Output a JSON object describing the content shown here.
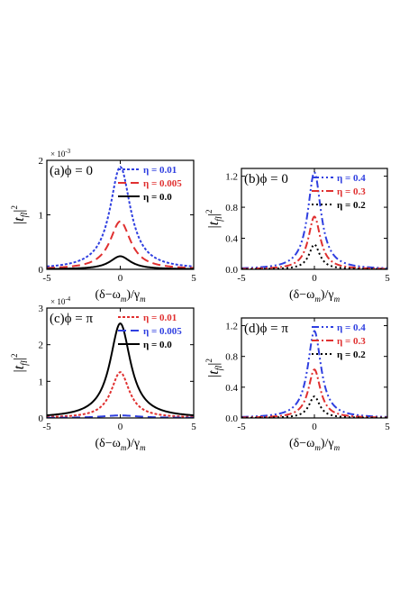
{
  "chart_data": [
    {
      "type": "line",
      "panel_label": "(a)ϕ = 0",
      "ylabel": "|t_{fl}|^2",
      "xlabel": "(δ−ω_m)/γ_m",
      "xlim": [
        -5,
        5
      ],
      "ylim": [
        0,
        2
      ],
      "yticks": [
        "0",
        "1",
        "2"
      ],
      "xticks": [
        "-5",
        "0",
        "5"
      ],
      "scale_note": "× 10^-3",
      "legend_position": "top-right",
      "series": [
        {
          "name": "η = 0.01",
          "color": "#2f3fe0",
          "dash": "3,2",
          "peak": 1.88,
          "width": 0.85
        },
        {
          "name": "η = 0.005",
          "color": "#e03030",
          "dash": "9,5",
          "peak": 0.88,
          "width": 0.85
        },
        {
          "name": "η = 0.0",
          "color": "#000000",
          "dash": "",
          "peak": 0.24,
          "width": 0.85
        }
      ]
    },
    {
      "type": "line",
      "panel_label": "(b)ϕ = 0",
      "ylabel": "|t_{fl}|^2",
      "xlabel": "(δ−ω_m)/γ_m",
      "xlim": [
        -5,
        5
      ],
      "ylim": [
        0,
        1.3
      ],
      "yticks": [
        "0.0",
        "0.4",
        "0.8",
        "1.2"
      ],
      "xticks": [
        "-5",
        "0",
        "5"
      ],
      "legend_position": "top-right",
      "series": [
        {
          "name": "η = 0.4",
          "color": "#2f3fe0",
          "dash": "8,3,2,3,2,3",
          "peak": 1.25,
          "width": 0.55
        },
        {
          "name": "η = 0.3",
          "color": "#e03030",
          "dash": "8,3,2,3",
          "peak": 0.68,
          "width": 0.5
        },
        {
          "name": "η = 0.2",
          "color": "#000000",
          "dash": "2,3",
          "peak": 0.32,
          "width": 0.45
        }
      ]
    },
    {
      "type": "line",
      "panel_label": "(c)ϕ = π",
      "ylabel": "|t_{fl}|^2",
      "xlabel": "(δ−ω_m)/γ_m",
      "xlim": [
        -5,
        5
      ],
      "ylim": [
        0,
        3
      ],
      "yticks": [
        "0",
        "1",
        "2",
        "3"
      ],
      "xticks": [
        "-5",
        "0",
        "5"
      ],
      "scale_note": "× 10^-4",
      "legend_position": "top-right",
      "series": [
        {
          "name": "η = 0.01",
          "color": "#e03030",
          "dash": "3,2",
          "peak": 1.25,
          "width": 0.75
        },
        {
          "name": "η = 0.005",
          "color": "#2f3fe0",
          "dash": "9,5",
          "peak": 0.07,
          "width": 1.5
        },
        {
          "name": "η = 0.0",
          "color": "#000000",
          "dash": "",
          "peak": 2.58,
          "width": 0.85
        }
      ]
    },
    {
      "type": "line",
      "panel_label": "(d)ϕ = π",
      "ylabel": "|t_{fl}|^2",
      "xlabel": "(δ−ω_m)/γ_m",
      "xlim": [
        -5,
        5
      ],
      "ylim": [
        0,
        1.3
      ],
      "yticks": [
        "0.0",
        "0.4",
        "0.8",
        "1.2"
      ],
      "xticks": [
        "-5",
        "0",
        "5"
      ],
      "legend_position": "top-right",
      "series": [
        {
          "name": "η = 0.4",
          "color": "#2f3fe0",
          "dash": "8,3,2,3,2,3",
          "peak": 1.13,
          "width": 0.55
        },
        {
          "name": "η = 0.3",
          "color": "#e03030",
          "dash": "8,3,2,3",
          "peak": 0.63,
          "width": 0.5
        },
        {
          "name": "η = 0.2",
          "color": "#000000",
          "dash": "2,3",
          "peak": 0.28,
          "width": 0.45
        }
      ]
    }
  ]
}
